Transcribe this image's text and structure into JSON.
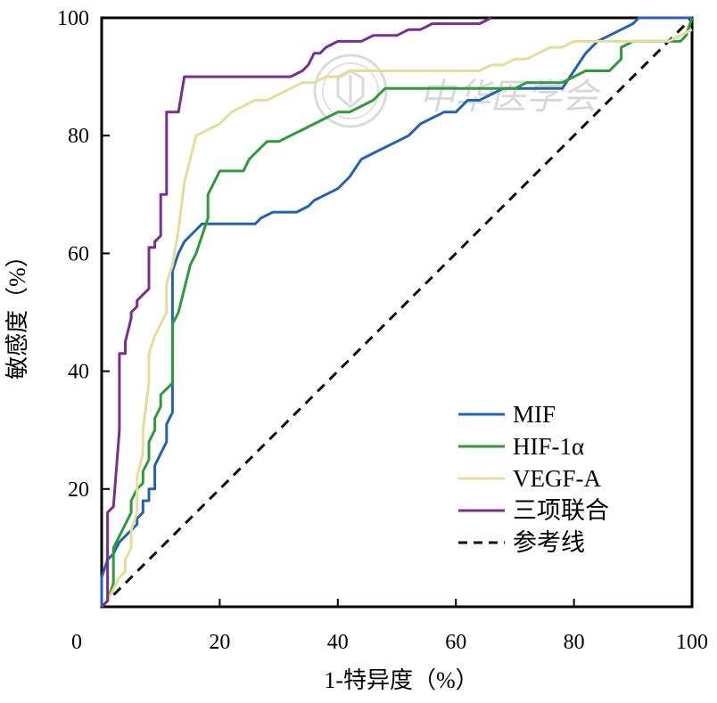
{
  "chart_data": {
    "type": "line",
    "title": "",
    "xlabel": "1-特异度（%）",
    "ylabel": "敏感度（%）",
    "xlim": [
      0,
      100
    ],
    "ylim": [
      0,
      100
    ],
    "x_ticks": [
      "0",
      "20",
      "40",
      "60",
      "80",
      "100"
    ],
    "y_ticks": [
      "20",
      "40",
      "60",
      "80",
      "100"
    ],
    "grid": false,
    "legend_position": "bottom-right",
    "series": [
      {
        "name": "MIF",
        "color": "#2563b0",
        "x": [
          0,
          0,
          1,
          2,
          3,
          4,
          5,
          6,
          6,
          7,
          7,
          8,
          8,
          9,
          9,
          10,
          11,
          11,
          12,
          12,
          13,
          14,
          15,
          16,
          17,
          18,
          20,
          22,
          24,
          26,
          27,
          29,
          31,
          33,
          35,
          36,
          38,
          40,
          42,
          44,
          46,
          48,
          50,
          52,
          54,
          56,
          58,
          60,
          62,
          64,
          66,
          68,
          70,
          72,
          74,
          76,
          78,
          80,
          82,
          84,
          86,
          88,
          90,
          91,
          93,
          95,
          97,
          99,
          100
        ],
        "y": [
          0,
          5,
          8,
          9,
          11,
          12,
          13,
          14,
          15,
          16,
          18,
          18,
          20,
          20,
          24,
          26,
          28,
          31,
          33,
          57,
          60,
          62,
          63,
          64,
          65,
          65,
          65,
          65,
          65,
          65,
          66,
          67,
          67,
          67,
          68,
          69,
          70,
          71,
          73,
          76,
          77,
          78,
          79,
          80,
          82,
          83,
          84,
          84,
          86,
          86,
          87,
          88,
          88,
          88,
          88,
          88,
          88,
          91,
          94,
          96,
          97,
          98,
          99,
          100,
          100,
          100,
          100,
          100,
          100
        ]
      },
      {
        "name": "HIF-1α",
        "color": "#2f9a3c",
        "x": [
          0,
          1,
          2,
          2,
          3,
          4,
          5,
          5,
          6,
          7,
          7,
          8,
          8,
          9,
          9,
          10,
          10,
          11,
          12,
          12,
          13,
          14,
          15,
          16,
          18,
          18,
          20,
          22,
          24,
          25,
          26,
          27,
          28,
          30,
          32,
          34,
          36,
          38,
          40,
          42,
          44,
          46,
          47,
          48,
          50,
          52,
          54,
          56,
          58,
          60,
          62,
          64,
          66,
          68,
          70,
          72,
          74,
          76,
          78,
          80,
          82,
          84,
          86,
          88,
          88,
          90,
          92,
          94,
          96,
          98,
          99,
          100
        ],
        "y": [
          0,
          1,
          4,
          10,
          12,
          14,
          16,
          18,
          20,
          21,
          23,
          25,
          28,
          30,
          32,
          34,
          36,
          37,
          38,
          48,
          50,
          54,
          58,
          60,
          66,
          70,
          74,
          74,
          74,
          76,
          77,
          78,
          79,
          79,
          80,
          81,
          82,
          83,
          84,
          84,
          85,
          86,
          87,
          88,
          88,
          88,
          88,
          88,
          88,
          88,
          88,
          88,
          88,
          88,
          88,
          89,
          89,
          89,
          89,
          90,
          91,
          91,
          91,
          93,
          95,
          96,
          96,
          96,
          96,
          96,
          97,
          100
        ]
      },
      {
        "name": "VEGF-A",
        "color": "#e6dc9c",
        "x": [
          0,
          1,
          2,
          3,
          4,
          4,
          5,
          5,
          6,
          6,
          7,
          7,
          8,
          8,
          9,
          10,
          11,
          11,
          12,
          13,
          14,
          15,
          16,
          18,
          20,
          22,
          24,
          26,
          28,
          30,
          32,
          34,
          36,
          38,
          40,
          42,
          44,
          46,
          48,
          50,
          52,
          54,
          56,
          58,
          60,
          62,
          64,
          66,
          68,
          70,
          72,
          74,
          76,
          78,
          80,
          82,
          84,
          86,
          88,
          90,
          92,
          94,
          96,
          98,
          100
        ],
        "y": [
          0,
          1,
          3,
          5,
          6,
          8,
          10,
          13,
          16,
          22,
          26,
          30,
          38,
          43,
          46,
          48,
          50,
          55,
          58,
          64,
          72,
          76,
          80,
          81,
          82,
          84,
          85,
          86,
          86,
          87,
          88,
          89,
          89,
          90,
          90,
          91,
          91,
          91,
          91,
          91,
          91,
          91,
          91,
          91,
          91,
          91,
          91,
          92,
          92,
          93,
          93,
          94,
          95,
          95,
          96,
          96,
          96,
          96,
          96,
          96,
          96,
          96,
          96,
          97,
          98
        ]
      },
      {
        "name": "三项联合",
        "color": "#7a2f8f",
        "x": [
          0,
          1,
          1,
          2,
          2,
          3,
          3,
          4,
          4,
          5,
          5,
          6,
          6,
          7,
          7,
          8,
          8,
          9,
          9,
          10,
          10,
          11,
          11,
          12,
          13,
          14,
          15,
          16,
          18,
          20,
          22,
          24,
          26,
          28,
          30,
          32,
          34,
          35,
          36,
          37,
          38,
          40,
          42,
          44,
          46,
          48,
          50,
          52,
          54,
          56,
          58,
          60,
          62,
          64,
          66
        ],
        "y": [
          0,
          1,
          16,
          17,
          17,
          30,
          43,
          43,
          45,
          49,
          50,
          51,
          52,
          53,
          53,
          54,
          61,
          61,
          62,
          63,
          70,
          70,
          84,
          84,
          84,
          90,
          90,
          90,
          90,
          90,
          90,
          90,
          90,
          90,
          90,
          90,
          91,
          92,
          94,
          94,
          95,
          96,
          96,
          96,
          97,
          97,
          97,
          98,
          98,
          99,
          99,
          99,
          99,
          99,
          100
        ]
      },
      {
        "name": "参考线",
        "color": "#111111",
        "dashed": true,
        "x": [
          0,
          100
        ],
        "y": [
          0,
          100
        ]
      }
    ]
  },
  "watermark": {
    "text": "中华医学会"
  }
}
